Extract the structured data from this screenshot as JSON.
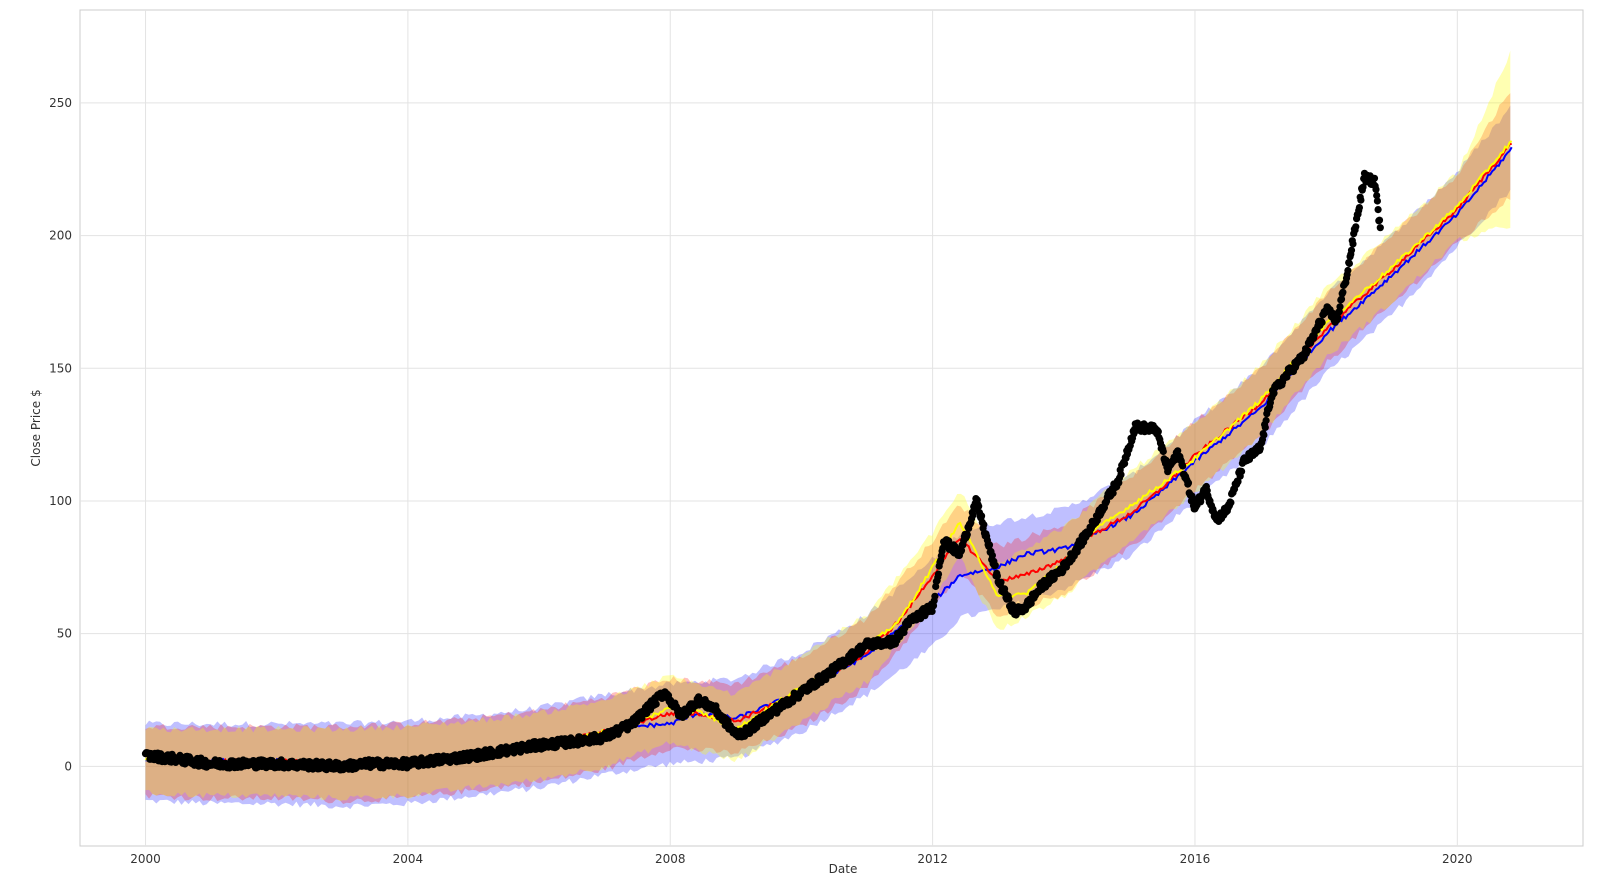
{
  "chart_data": {
    "type": "line",
    "title": "",
    "xlabel": "Date",
    "ylabel": "Close Price $",
    "x_axis_type": "date",
    "xlim": [
      "1999-01-01",
      "2021-12-01"
    ],
    "ylim": [
      -30,
      285
    ],
    "x_ticks": [
      "2000",
      "2004",
      "2008",
      "2012",
      "2016",
      "2020"
    ],
    "y_ticks": [
      0,
      50,
      100,
      150,
      200,
      250
    ],
    "grid": true,
    "legend": "none",
    "series": [
      {
        "color": "#0000ff",
        "kind": "forecast-line",
        "band_opacity": 0.25,
        "points": [
          [
            "2000-01-01",
            3
          ],
          [
            "2001-01-01",
            2
          ],
          [
            "2002-01-01",
            2
          ],
          [
            "2003-01-01",
            1
          ],
          [
            "2004-01-01",
            2
          ],
          [
            "2005-01-01",
            4
          ],
          [
            "2006-01-01",
            7
          ],
          [
            "2007-01-01",
            12
          ],
          [
            "2007-06-01",
            15
          ],
          [
            "2008-01-01",
            16
          ],
          [
            "2008-06-01",
            20
          ],
          [
            "2009-01-01",
            18
          ],
          [
            "2010-01-01",
            28
          ],
          [
            "2011-01-01",
            42
          ],
          [
            "2011-07-01",
            52
          ],
          [
            "2012-01-01",
            62
          ],
          [
            "2012-06-01",
            72
          ],
          [
            "2013-01-01",
            75
          ],
          [
            "2013-06-01",
            80
          ],
          [
            "2014-01-01",
            82
          ],
          [
            "2014-06-01",
            87
          ],
          [
            "2015-01-01",
            94
          ],
          [
            "2015-06-01",
            102
          ],
          [
            "2016-01-01",
            115
          ],
          [
            "2017-01-01",
            135
          ],
          [
            "2018-01-01",
            163
          ],
          [
            "2019-01-01",
            185
          ],
          [
            "2020-01-01",
            208
          ],
          [
            "2020-11-01",
            233
          ]
        ],
        "band": [
          [
            "2000-01-01",
            -13,
            16
          ],
          [
            "2001-01-01",
            -14,
            16
          ],
          [
            "2002-01-01",
            -14,
            16
          ],
          [
            "2003-01-01",
            -15,
            16
          ],
          [
            "2004-01-01",
            -14,
            17
          ],
          [
            "2005-01-01",
            -11,
            19
          ],
          [
            "2006-01-01",
            -8,
            22
          ],
          [
            "2007-01-01",
            -3,
            27
          ],
          [
            "2008-01-01",
            1,
            31
          ],
          [
            "2009-01-01",
            3,
            33
          ],
          [
            "2010-01-01",
            13,
            43
          ],
          [
            "2011-01-01",
            27,
            57
          ],
          [
            "2012-01-01",
            45,
            78
          ],
          [
            "2012-06-01",
            56,
            88
          ],
          [
            "2013-01-01",
            59,
            92
          ],
          [
            "2014-01-01",
            67,
            97
          ],
          [
            "2015-01-01",
            79,
            109
          ],
          [
            "2016-01-01",
            100,
            130
          ],
          [
            "2017-01-01",
            120,
            150
          ],
          [
            "2018-01-01",
            148,
            178
          ],
          [
            "2019-01-01",
            170,
            200
          ],
          [
            "2020-01-01",
            196,
            224
          ],
          [
            "2020-11-01",
            218,
            249
          ]
        ]
      },
      {
        "color": "#ff0000",
        "kind": "forecast-line",
        "band_opacity": 0.25,
        "points": [
          [
            "2000-01-01",
            4
          ],
          [
            "2001-01-01",
            2
          ],
          [
            "2002-01-01",
            2
          ],
          [
            "2003-01-01",
            1
          ],
          [
            "2004-01-01",
            2
          ],
          [
            "2005-01-01",
            4
          ],
          [
            "2006-01-01",
            8
          ],
          [
            "2007-01-01",
            13
          ],
          [
            "2007-06-01",
            16
          ],
          [
            "2008-01-01",
            20
          ],
          [
            "2008-06-01",
            20
          ],
          [
            "2009-01-01",
            17
          ],
          [
            "2010-01-01",
            28
          ],
          [
            "2011-01-01",
            43
          ],
          [
            "2011-07-01",
            55
          ],
          [
            "2012-01-01",
            72
          ],
          [
            "2012-06-01",
            86
          ],
          [
            "2013-01-01",
            70
          ],
          [
            "2013-06-01",
            72
          ],
          [
            "2014-01-01",
            78
          ],
          [
            "2014-06-01",
            87
          ],
          [
            "2015-01-01",
            95
          ],
          [
            "2015-06-01",
            103
          ],
          [
            "2016-01-01",
            117
          ],
          [
            "2017-01-01",
            137
          ],
          [
            "2018-01-01",
            165
          ],
          [
            "2019-01-01",
            187
          ],
          [
            "2020-01-01",
            210
          ],
          [
            "2020-11-01",
            235
          ]
        ],
        "band": [
          [
            "2000-01-01",
            -11,
            15
          ],
          [
            "2001-01-01",
            -12,
            15
          ],
          [
            "2002-01-01",
            -12,
            15
          ],
          [
            "2003-01-01",
            -13,
            15
          ],
          [
            "2004-01-01",
            -12,
            16
          ],
          [
            "2005-01-01",
            -9,
            18
          ],
          [
            "2006-01-01",
            -6,
            21
          ],
          [
            "2007-01-01",
            -1,
            26
          ],
          [
            "2008-01-01",
            7,
            33
          ],
          [
            "2009-01-01",
            5,
            31
          ],
          [
            "2010-01-01",
            15,
            41
          ],
          [
            "2011-01-01",
            30,
            56
          ],
          [
            "2012-01-01",
            59,
            85
          ],
          [
            "2012-06-01",
            73,
            99
          ],
          [
            "2013-01-01",
            57,
            83
          ],
          [
            "2014-01-01",
            65,
            91
          ],
          [
            "2015-01-01",
            82,
            108
          ],
          [
            "2016-01-01",
            104,
            130
          ],
          [
            "2017-01-01",
            124,
            150
          ],
          [
            "2018-01-01",
            152,
            178
          ],
          [
            "2019-01-01",
            174,
            200
          ],
          [
            "2020-01-01",
            197,
            223
          ],
          [
            "2020-11-01",
            215,
            256
          ]
        ]
      },
      {
        "color": "#ffff00",
        "kind": "forecast-line",
        "band_opacity": 0.3,
        "points": [
          [
            "2000-01-01",
            3
          ],
          [
            "2001-01-01",
            1
          ],
          [
            "2002-01-01",
            1
          ],
          [
            "2003-01-01",
            0
          ],
          [
            "2004-01-01",
            2
          ],
          [
            "2005-01-01",
            4
          ],
          [
            "2006-01-01",
            8
          ],
          [
            "2007-01-01",
            13
          ],
          [
            "2007-06-01",
            16
          ],
          [
            "2008-01-01",
            22
          ],
          [
            "2008-06-01",
            21
          ],
          [
            "2009-01-01",
            14
          ],
          [
            "2010-01-01",
            30
          ],
          [
            "2011-01-01",
            45
          ],
          [
            "2011-07-01",
            55
          ],
          [
            "2012-01-01",
            75
          ],
          [
            "2012-06-01",
            92
          ],
          [
            "2013-01-01",
            64
          ],
          [
            "2013-06-01",
            65
          ],
          [
            "2014-01-01",
            77
          ],
          [
            "2014-06-01",
            88
          ],
          [
            "2015-01-01",
            98
          ],
          [
            "2015-06-01",
            105
          ],
          [
            "2016-01-01",
            116
          ],
          [
            "2017-01-01",
            138
          ],
          [
            "2018-01-01",
            167
          ],
          [
            "2019-01-01",
            188
          ],
          [
            "2020-01-01",
            211
          ],
          [
            "2020-11-01",
            236
          ]
        ],
        "band": [
          [
            "2000-01-01",
            -10,
            14
          ],
          [
            "2001-01-01",
            -11,
            14
          ],
          [
            "2002-01-01",
            -11,
            14
          ],
          [
            "2003-01-01",
            -12,
            14
          ],
          [
            "2004-01-01",
            -11,
            15
          ],
          [
            "2005-01-01",
            -8,
            17
          ],
          [
            "2006-01-01",
            -5,
            20
          ],
          [
            "2007-01-01",
            0,
            25
          ],
          [
            "2008-01-01",
            9,
            34
          ],
          [
            "2009-01-01",
            2,
            27
          ],
          [
            "2010-01-01",
            17,
            42
          ],
          [
            "2011-01-01",
            32,
            57
          ],
          [
            "2012-01-01",
            62,
            88
          ],
          [
            "2012-06-01",
            79,
            104
          ],
          [
            "2013-01-01",
            51,
            77
          ],
          [
            "2014-01-01",
            64,
            90
          ],
          [
            "2015-01-01",
            85,
            111
          ],
          [
            "2016-01-01",
            103,
            129
          ],
          [
            "2017-01-01",
            125,
            151
          ],
          [
            "2018-01-01",
            154,
            180
          ],
          [
            "2019-01-01",
            175,
            201
          ],
          [
            "2020-01-01",
            198,
            224
          ],
          [
            "2020-11-01",
            204,
            270
          ]
        ]
      },
      {
        "color": "#000000",
        "kind": "observed-scatter",
        "points": [
          [
            "2000-01-01",
            4
          ],
          [
            "2000-06-01",
            3
          ],
          [
            "2001-01-01",
            1
          ],
          [
            "2002-01-01",
            1
          ],
          [
            "2003-01-01",
            0
          ],
          [
            "2003-06-01",
            1
          ],
          [
            "2004-01-01",
            1
          ],
          [
            "2005-01-01",
            4
          ],
          [
            "2006-01-01",
            8
          ],
          [
            "2006-06-01",
            9
          ],
          [
            "2007-01-01",
            11
          ],
          [
            "2007-06-01",
            16
          ],
          [
            "2007-12-01",
            28
          ],
          [
            "2008-03-01",
            19
          ],
          [
            "2008-06-01",
            25
          ],
          [
            "2008-09-01",
            22
          ],
          [
            "2009-01-01",
            12
          ],
          [
            "2009-03-01",
            13
          ],
          [
            "2009-06-01",
            18
          ],
          [
            "2010-01-01",
            28
          ],
          [
            "2010-06-01",
            35
          ],
          [
            "2011-01-01",
            46
          ],
          [
            "2011-06-01",
            47
          ],
          [
            "2011-09-01",
            55
          ],
          [
            "2012-01-01",
            60
          ],
          [
            "2012-03-01",
            85
          ],
          [
            "2012-06-01",
            80
          ],
          [
            "2012-09-01",
            100
          ],
          [
            "2013-01-01",
            70
          ],
          [
            "2013-04-01",
            58
          ],
          [
            "2013-06-01",
            60
          ],
          [
            "2013-09-01",
            68
          ],
          [
            "2014-01-01",
            75
          ],
          [
            "2014-06-01",
            90
          ],
          [
            "2014-11-01",
            108
          ],
          [
            "2015-02-01",
            128
          ],
          [
            "2015-06-01",
            127
          ],
          [
            "2015-08-01",
            112
          ],
          [
            "2015-10-01",
            118
          ],
          [
            "2016-01-01",
            97
          ],
          [
            "2016-03-01",
            105
          ],
          [
            "2016-05-01",
            93
          ],
          [
            "2016-07-01",
            97
          ],
          [
            "2016-10-01",
            115
          ],
          [
            "2017-01-01",
            120
          ],
          [
            "2017-03-01",
            140
          ],
          [
            "2017-06-01",
            148
          ],
          [
            "2017-09-01",
            155
          ],
          [
            "2018-01-01",
            172
          ],
          [
            "2018-03-01",
            168
          ],
          [
            "2018-05-01",
            187
          ],
          [
            "2018-08-01",
            222
          ],
          [
            "2018-10-01",
            220
          ],
          [
            "2018-11-01",
            200
          ]
        ]
      }
    ]
  }
}
